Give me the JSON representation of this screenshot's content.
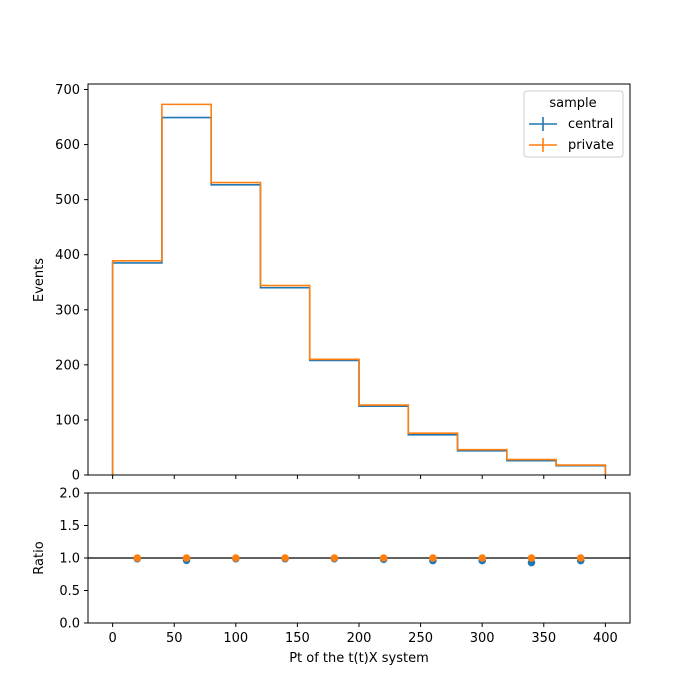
{
  "chart_data": [
    {
      "type": "line",
      "subtype": "step-histogram",
      "title": "",
      "xlabel": "",
      "ylabel": "Events",
      "xlim": [
        -20,
        420
      ],
      "ylim": [
        0,
        710
      ],
      "bin_edges": [
        0,
        40,
        80,
        120,
        160,
        200,
        240,
        280,
        320,
        360,
        400
      ],
      "xticks": [
        0,
        50,
        100,
        150,
        200,
        250,
        300,
        350,
        400
      ],
      "yticks": [
        0,
        100,
        200,
        300,
        400,
        500,
        600,
        700
      ],
      "legend": {
        "title": "sample",
        "position": "top-right"
      },
      "series": [
        {
          "name": "central",
          "color": "#1f77b4",
          "values": [
            385,
            649,
            527,
            340,
            208,
            125,
            73,
            44,
            26,
            17
          ]
        },
        {
          "name": "private",
          "color": "#ff7f0e",
          "values": [
            389,
            673,
            531,
            344,
            210,
            127,
            76,
            46,
            28,
            18
          ]
        }
      ]
    },
    {
      "type": "scatter",
      "title": "",
      "xlabel": "Pt of the t(t)X system",
      "ylabel": "Ratio",
      "xlim": [
        -20,
        420
      ],
      "ylim": [
        0,
        2
      ],
      "xticks": [
        0,
        50,
        100,
        150,
        200,
        250,
        300,
        350,
        400
      ],
      "yticks": [
        0.0,
        0.5,
        1.0,
        1.5,
        2.0
      ],
      "reference_line": 1.0,
      "x": [
        20,
        60,
        100,
        140,
        180,
        220,
        260,
        300,
        340,
        380
      ],
      "series": [
        {
          "color": "#1f77b4",
          "values": [
            0.99,
            0.965,
            0.99,
            0.99,
            0.99,
            0.98,
            0.96,
            0.96,
            0.93,
            0.96
          ]
        },
        {
          "color": "#ff7f0e",
          "values": [
            1.0,
            1.0,
            1.0,
            1.0,
            1.0,
            1.0,
            1.0,
            1.0,
            1.0,
            1.0
          ]
        }
      ]
    }
  ]
}
